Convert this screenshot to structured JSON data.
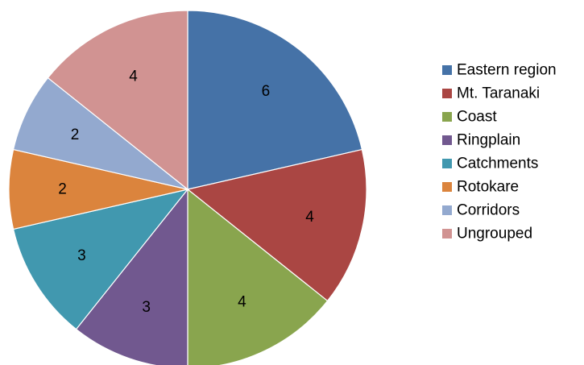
{
  "chart_data": {
    "type": "pie",
    "title": "",
    "categories": [
      "Eastern region",
      "Mt. Taranaki",
      "Coast",
      "Ringplain",
      "Catchments",
      "Rotokare",
      "Corridors",
      "Ungrouped"
    ],
    "values": [
      6,
      4,
      4,
      3,
      3,
      2,
      2,
      4
    ],
    "colors": [
      "#4572A7",
      "#AA4643",
      "#89A54E",
      "#71588F",
      "#4198AF",
      "#DB843D",
      "#93A9CF",
      "#D19392"
    ],
    "start_angle": "12 o'clock",
    "direction": "clockwise",
    "data_labels": "values",
    "legend": "right"
  }
}
